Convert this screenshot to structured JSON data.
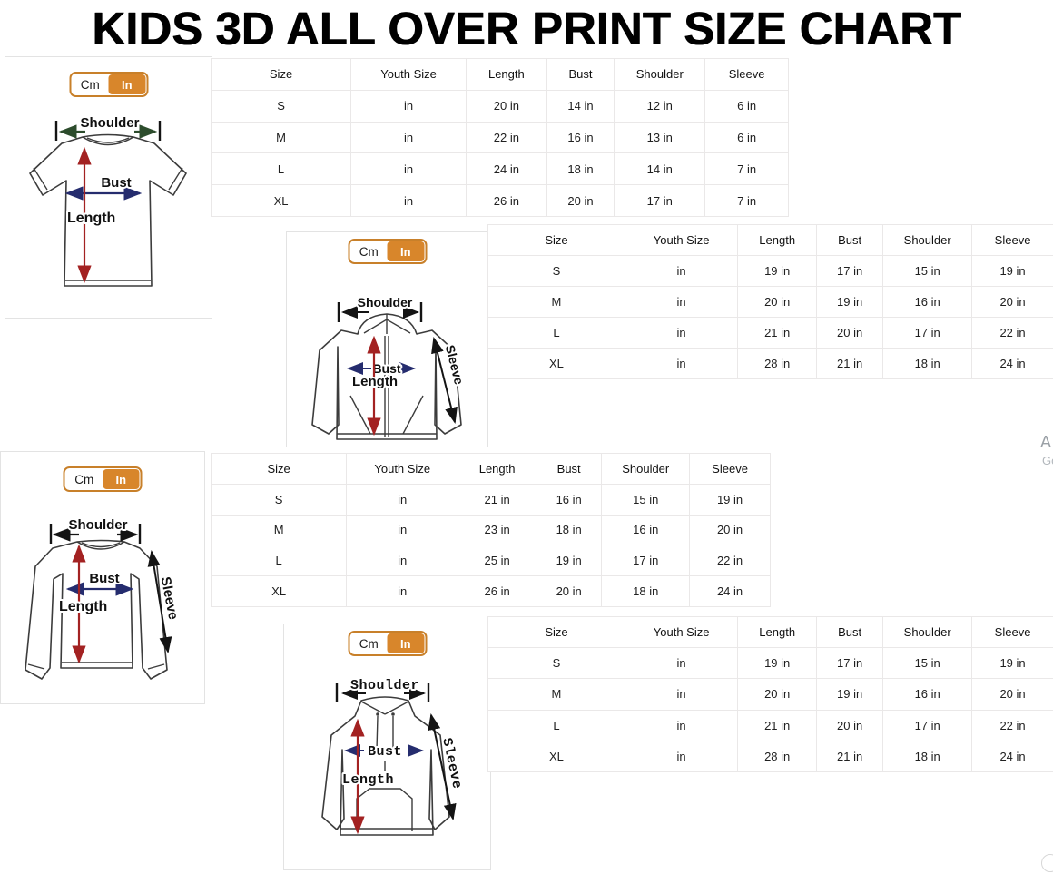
{
  "title": "KIDS 3D ALL OVER PRINT SIZE CHART",
  "toggle": {
    "cm_label": "Cm",
    "in_label": "In",
    "active": "In"
  },
  "colors": {
    "accent_orange": "#d8862b",
    "toggle_border_orange": "#c8802a",
    "arrow_red": "#a32222",
    "arrow_navy": "#252c6e",
    "arrow_green": "#2c4c2c",
    "arrow_black": "#141414",
    "table_border": "#eae8e8"
  },
  "table_headers": [
    "Size",
    "Youth Size",
    "Length",
    "Bust",
    "Shoulder",
    "Sleeve"
  ],
  "sections": [
    {
      "garment": "t-shirt",
      "labels": {
        "shoulder": "Shoulder",
        "bust": "Bust",
        "length": "Length"
      },
      "rows": [
        [
          "S",
          "in",
          "20 in",
          "14 in",
          "12 in",
          "6 in"
        ],
        [
          "M",
          "in",
          "22 in",
          "16 in",
          "13 in",
          "6 in"
        ],
        [
          "L",
          "in",
          "24 in",
          "18 in",
          "14 in",
          "7 in"
        ],
        [
          "XL",
          "in",
          "26 in",
          "20 in",
          "17 in",
          "7 in"
        ]
      ]
    },
    {
      "garment": "zip-hoodie",
      "labels": {
        "shoulder": "Shoulder",
        "bust": "Bust",
        "length": "Length",
        "sleeve": "Sleeve"
      },
      "rows": [
        [
          "S",
          "in",
          "19 in",
          "17 in",
          "15 in",
          "19 in"
        ],
        [
          "M",
          "in",
          "20 in",
          "19 in",
          "16 in",
          "20 in"
        ],
        [
          "L",
          "in",
          "21 in",
          "20 in",
          "17 in",
          "22 in"
        ],
        [
          "XL",
          "in",
          "28 in",
          "21 in",
          "18 in",
          "24 in"
        ]
      ]
    },
    {
      "garment": "long-sleeve-shirt",
      "labels": {
        "shoulder": "Shoulder",
        "bust": "Bust",
        "length": "Length",
        "sleeve": "Sleeve"
      },
      "rows": [
        [
          "S",
          "in",
          "21 in",
          "16 in",
          "15 in",
          "19 in"
        ],
        [
          "M",
          "in",
          "23 in",
          "18 in",
          "16 in",
          "20 in"
        ],
        [
          "L",
          "in",
          "25 in",
          "19 in",
          "17 in",
          "22 in"
        ],
        [
          "XL",
          "in",
          "26 in",
          "20 in",
          "18 in",
          "24 in"
        ]
      ]
    },
    {
      "garment": "hoodie",
      "labels": {
        "shoulder": "Shoulder",
        "bust": "Bust",
        "length": "Length",
        "sleeve": "Sleeve"
      },
      "rows": [
        [
          "S",
          "in",
          "19 in",
          "17 in",
          "15 in",
          "19 in"
        ],
        [
          "M",
          "in",
          "20 in",
          "19 in",
          "16 in",
          "20 in"
        ],
        [
          "L",
          "in",
          "21 in",
          "20 in",
          "17 in",
          "22 in"
        ],
        [
          "XL",
          "in",
          "28 in",
          "21 in",
          "18 in",
          "24 in"
        ]
      ]
    }
  ],
  "edge_artifacts": {
    "cropped_text_top": "A",
    "cropped_text_bottom": "Go"
  }
}
